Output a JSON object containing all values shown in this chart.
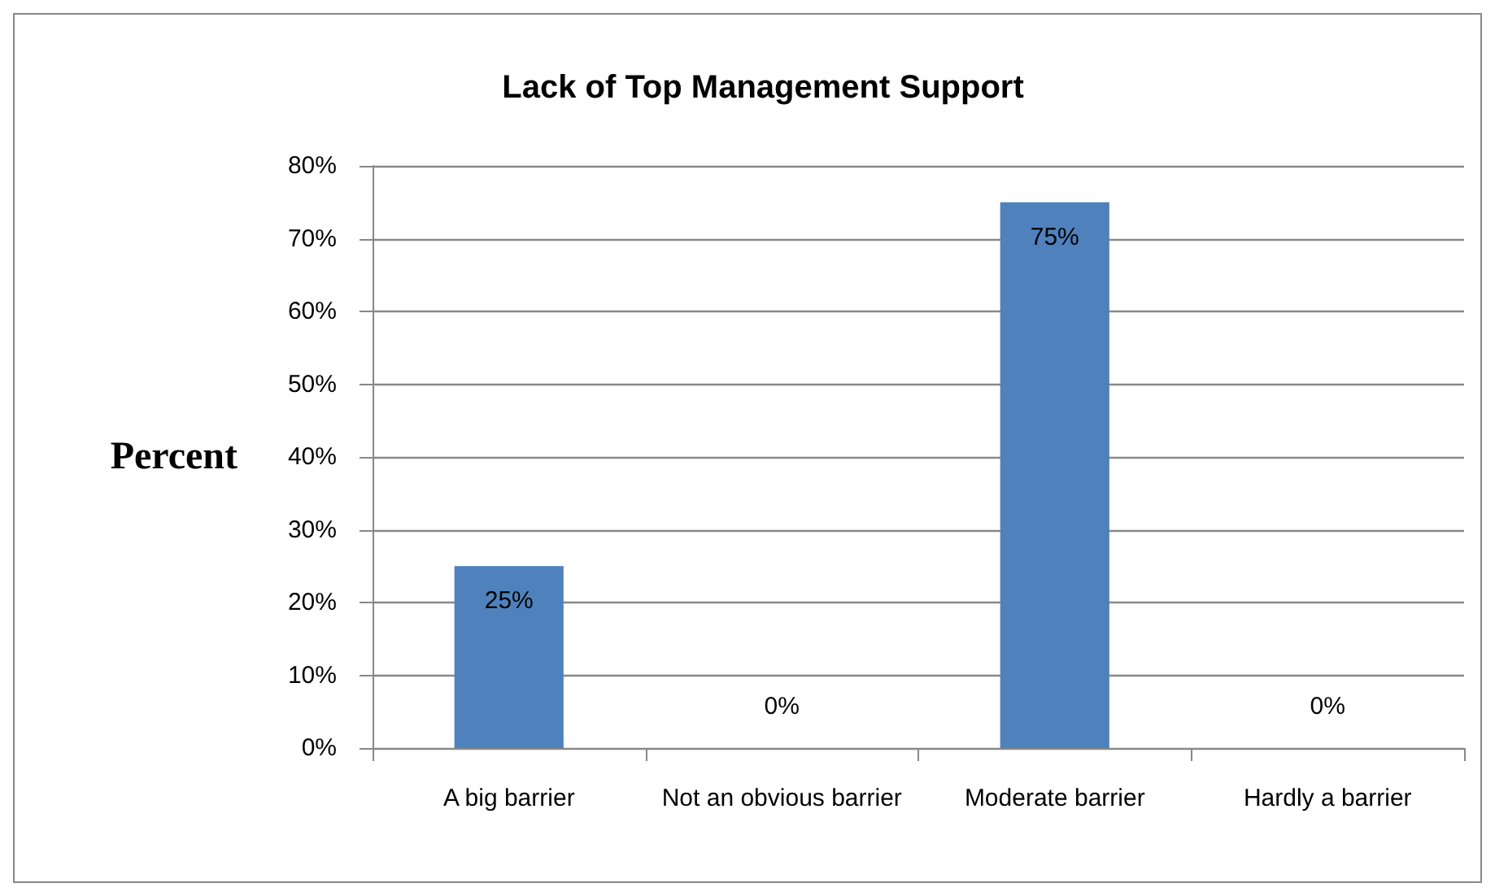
{
  "chart_data": {
    "type": "bar",
    "title": "Lack of Top Management Support",
    "ylabel": "Percent",
    "categories": [
      "A big barrier",
      "Not an obvious barrier",
      "Moderate barrier",
      "Hardly a barrier"
    ],
    "values": [
      25,
      0,
      75,
      0
    ],
    "value_labels": [
      "25%",
      "0%",
      "75%",
      "0%"
    ],
    "color": "#4f81bd",
    "ylim": [
      0,
      80
    ],
    "yticks": [
      {
        "value": 0,
        "label": "0%"
      },
      {
        "value": 10,
        "label": "10%"
      },
      {
        "value": 20,
        "label": "20%"
      },
      {
        "value": 30,
        "label": "30%"
      },
      {
        "value": 40,
        "label": "40%"
      },
      {
        "value": 50,
        "label": "50%"
      },
      {
        "value": 60,
        "label": "60%"
      },
      {
        "value": 70,
        "label": "70%"
      },
      {
        "value": 80,
        "label": "80%"
      }
    ],
    "grid": "y"
  }
}
